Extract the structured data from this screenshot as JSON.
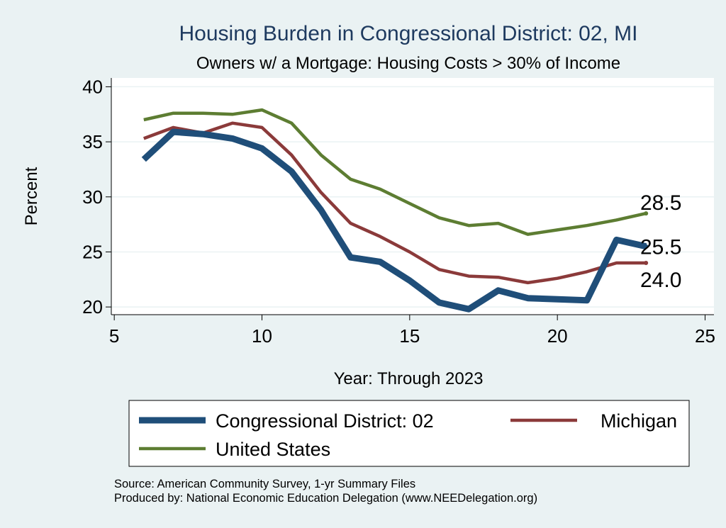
{
  "chart_data": {
    "type": "line",
    "title": "Housing Burden in Congressional District:  02, MI",
    "subtitle": "Owners w/ a Mortgage: Housing Costs > 30% of Income",
    "xlabel": "Year: Through 2023",
    "ylabel": "Percent",
    "xlim": [
      4.9,
      25.3
    ],
    "ylim": [
      19.3,
      40.8
    ],
    "xticks": [
      5,
      10,
      15,
      20,
      25
    ],
    "yticks": [
      20,
      25,
      30,
      35,
      40
    ],
    "grid": true,
    "legend_position": "bottom",
    "x": [
      6,
      7,
      8,
      9,
      10,
      11,
      12,
      13,
      14,
      15,
      16,
      17,
      18,
      19,
      20,
      21,
      22,
      23
    ],
    "series": [
      {
        "name": "Congressional District:  02",
        "color": "#1f4e79",
        "values": [
          33.4,
          35.9,
          35.7,
          35.3,
          34.4,
          32.3,
          28.8,
          24.5,
          24.1,
          22.4,
          20.4,
          19.8,
          21.5,
          20.8,
          20.7,
          20.6,
          26.1,
          25.5
        ],
        "end_label": "25.5"
      },
      {
        "name": "Michigan",
        "color": "#8b3a3a",
        "values": [
          35.3,
          36.3,
          35.8,
          36.7,
          36.3,
          33.8,
          30.4,
          27.6,
          26.4,
          25.0,
          23.4,
          22.8,
          22.7,
          22.2,
          22.6,
          23.2,
          24.0,
          24.0
        ],
        "end_label": "24.0"
      },
      {
        "name": "United States",
        "color": "#5d7d32",
        "values": [
          37.0,
          37.6,
          37.6,
          37.5,
          37.9,
          36.7,
          33.8,
          31.6,
          30.7,
          29.4,
          28.1,
          27.4,
          27.6,
          26.6,
          27.0,
          27.4,
          27.9,
          28.5
        ],
        "end_label": "28.5"
      }
    ],
    "notes": [
      "Source: American Community Survey, 1-yr Summary Files",
      "Produced by: National Economic Education Delegation (www.NEEDelegation.org)"
    ]
  }
}
